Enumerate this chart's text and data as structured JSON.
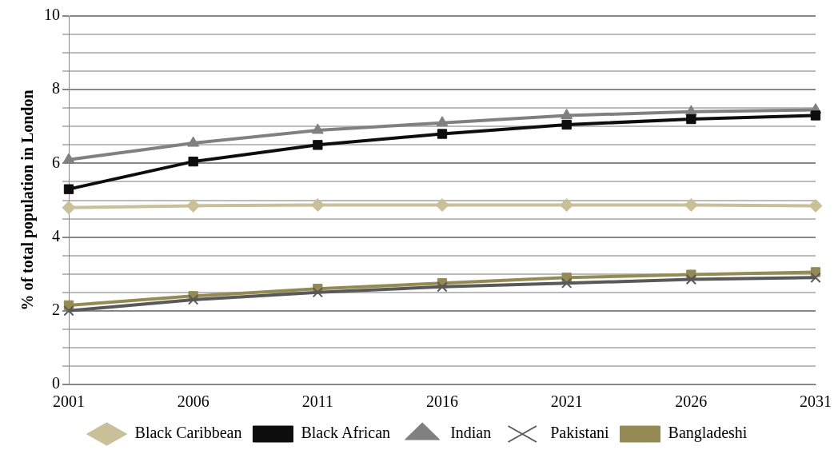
{
  "chart_data": {
    "type": "line",
    "ylabel": "% of total population in London",
    "categories": [
      "2001",
      "2006",
      "2011",
      "2016",
      "2021",
      "2026",
      "2031"
    ],
    "series": [
      {
        "name": "Black Caribbean",
        "color": "#c9bf99",
        "marker": "diamond",
        "values": [
          4.8,
          4.85,
          4.87,
          4.87,
          4.87,
          4.87,
          4.85
        ]
      },
      {
        "name": "Black African",
        "color": "#0d0d0d",
        "marker": "square",
        "values": [
          5.3,
          6.05,
          6.5,
          6.8,
          7.05,
          7.2,
          7.3
        ]
      },
      {
        "name": "Indian",
        "color": "#808080",
        "marker": "triangle",
        "values": [
          6.1,
          6.55,
          6.9,
          7.1,
          7.3,
          7.4,
          7.45
        ]
      },
      {
        "name": "Pakistani",
        "color": "#595959",
        "marker": "cross",
        "values": [
          2.0,
          2.3,
          2.5,
          2.65,
          2.75,
          2.85,
          2.9
        ]
      },
      {
        "name": "Bangladeshi",
        "color": "#948a54",
        "marker": "square",
        "values": [
          2.15,
          2.4,
          2.6,
          2.75,
          2.9,
          2.98,
          3.05
        ]
      }
    ],
    "ylim": [
      0,
      10
    ],
    "yticks": [
      0,
      {
        "value": 0.5,
        "label": null
      },
      {
        "value": 1,
        "label": null
      },
      {
        "value": 1.5,
        "label": null
      },
      2,
      {
        "value": 2.5,
        "label": null
      },
      {
        "value": 3,
        "label": null
      },
      {
        "value": 3.5,
        "label": null
      },
      4,
      {
        "value": 4.5,
        "label": null
      },
      {
        "value": 5,
        "label": null
      },
      {
        "value": 5.5,
        "label": null
      },
      6,
      {
        "value": 6.5,
        "label": null
      },
      {
        "value": 7,
        "label": null
      },
      {
        "value": 7.5,
        "label": null
      },
      8,
      {
        "value": 8.5,
        "label": null
      },
      {
        "value": 9,
        "label": null
      },
      {
        "value": 9.5,
        "label": null
      },
      10
    ],
    "grid": "y",
    "legend": "bottom"
  }
}
